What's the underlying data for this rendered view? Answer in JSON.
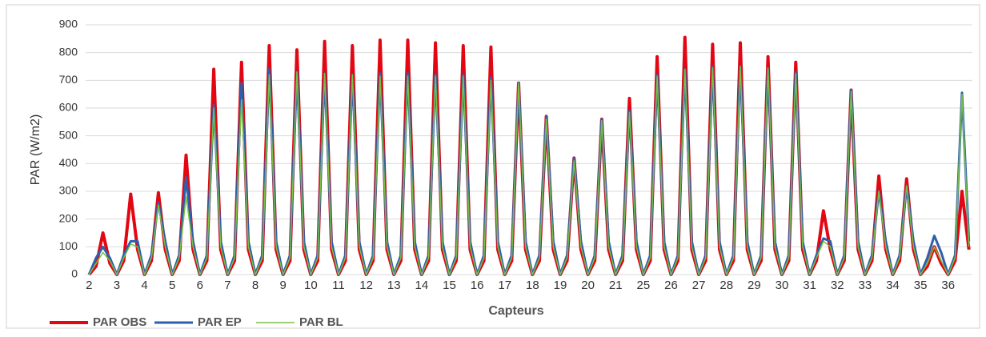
{
  "chart_data": {
    "type": "line",
    "x_label": "Capteurs",
    "y_label": "PAR (W/m2)",
    "categories": [
      "2",
      null,
      null,
      null,
      "3",
      null,
      null,
      null,
      "4",
      null,
      null,
      null,
      "5",
      null,
      null,
      null,
      "6",
      null,
      null,
      null,
      "7",
      null,
      null,
      null,
      "8",
      null,
      null,
      null,
      "9",
      null,
      null,
      null,
      "10",
      null,
      null,
      null,
      "11",
      null,
      null,
      null,
      "12",
      null,
      null,
      null,
      "13",
      null,
      null,
      null,
      "14",
      null,
      null,
      null,
      "15",
      null,
      null,
      null,
      "16",
      null,
      null,
      null,
      "17",
      null,
      null,
      null,
      "18",
      null,
      null,
      null,
      "19",
      null,
      null,
      null,
      "20",
      null,
      null,
      null,
      "21",
      null,
      null,
      null,
      "25",
      null,
      null,
      null,
      "26",
      null,
      null,
      null,
      "27",
      null,
      null,
      null,
      "28",
      null,
      null,
      null,
      "29",
      null,
      null,
      null,
      "30",
      null,
      null,
      null,
      "31",
      null,
      null,
      null,
      "32",
      null,
      null,
      null,
      "33",
      null,
      null,
      null,
      "34",
      null,
      null,
      null,
      "35",
      null,
      null,
      null,
      "36",
      null,
      null,
      null
    ],
    "series": [
      {
        "name": "PAR OBS",
        "color": "#e30613",
        "values": [
          0,
          30,
          150,
          40,
          0,
          50,
          290,
          90,
          0,
          50,
          295,
          90,
          0,
          50,
          430,
          90,
          0,
          50,
          740,
          90,
          0,
          50,
          765,
          90,
          0,
          50,
          825,
          90,
          0,
          50,
          810,
          90,
          0,
          50,
          840,
          90,
          0,
          50,
          825,
          90,
          0,
          50,
          845,
          90,
          0,
          50,
          845,
          90,
          0,
          50,
          835,
          90,
          0,
          50,
          825,
          90,
          0,
          50,
          820,
          90,
          0,
          50,
          690,
          90,
          0,
          50,
          570,
          90,
          0,
          50,
          420,
          90,
          0,
          50,
          560,
          90,
          0,
          50,
          635,
          90,
          0,
          50,
          785,
          90,
          0,
          50,
          855,
          90,
          0,
          50,
          830,
          90,
          0,
          50,
          835,
          90,
          0,
          50,
          785,
          90,
          0,
          50,
          765,
          90,
          0,
          50,
          230,
          90,
          0,
          50,
          665,
          90,
          0,
          50,
          355,
          90,
          0,
          50,
          345,
          90,
          0,
          30,
          100,
          40,
          0,
          50,
          300,
          90
        ]
      },
      {
        "name": "PAR EP",
        "color": "#2e5fac",
        "values": [
          0,
          60,
          100,
          60,
          0,
          70,
          120,
          120,
          0,
          70,
          260,
          120,
          0,
          70,
          350,
          120,
          0,
          70,
          610,
          120,
          0,
          70,
          690,
          120,
          0,
          70,
          740,
          120,
          0,
          70,
          730,
          120,
          0,
          70,
          725,
          120,
          0,
          70,
          720,
          120,
          0,
          70,
          725,
          120,
          0,
          70,
          725,
          120,
          0,
          70,
          720,
          120,
          0,
          70,
          720,
          120,
          0,
          70,
          710,
          120,
          0,
          70,
          690,
          120,
          0,
          70,
          570,
          120,
          0,
          70,
          420,
          120,
          0,
          70,
          560,
          120,
          0,
          70,
          590,
          120,
          0,
          70,
          720,
          120,
          0,
          70,
          740,
          120,
          0,
          70,
          750,
          120,
          0,
          70,
          750,
          120,
          0,
          70,
          740,
          120,
          0,
          70,
          730,
          120,
          0,
          70,
          130,
          120,
          0,
          70,
          665,
          120,
          0,
          70,
          300,
          120,
          0,
          70,
          320,
          120,
          0,
          60,
          140,
          80,
          0,
          70,
          655,
          120
        ]
      },
      {
        "name": "PAR BL",
        "color": "#7ac143",
        "values": [
          0,
          40,
          80,
          50,
          0,
          60,
          110,
          100,
          0,
          60,
          250,
          100,
          0,
          60,
          280,
          100,
          0,
          60,
          600,
          100,
          0,
          60,
          630,
          100,
          0,
          60,
          720,
          100,
          0,
          60,
          730,
          100,
          0,
          60,
          725,
          100,
          0,
          60,
          720,
          100,
          0,
          60,
          715,
          100,
          0,
          60,
          715,
          100,
          0,
          60,
          715,
          100,
          0,
          60,
          715,
          100,
          0,
          60,
          700,
          100,
          0,
          60,
          690,
          100,
          0,
          60,
          560,
          100,
          0,
          60,
          410,
          100,
          0,
          60,
          555,
          100,
          0,
          60,
          585,
          100,
          0,
          60,
          715,
          100,
          0,
          60,
          740,
          100,
          0,
          60,
          745,
          100,
          0,
          60,
          750,
          100,
          0,
          60,
          745,
          100,
          0,
          60,
          725,
          100,
          0,
          60,
          120,
          100,
          0,
          60,
          660,
          100,
          0,
          60,
          300,
          100,
          0,
          60,
          320,
          100,
          0,
          40,
          100,
          50,
          0,
          60,
          650,
          100
        ]
      }
    ],
    "ylim": [
      0,
      900
    ],
    "yticks": [
      0,
      100,
      200,
      300,
      400,
      500,
      600,
      700,
      800,
      900
    ],
    "grid": true
  }
}
